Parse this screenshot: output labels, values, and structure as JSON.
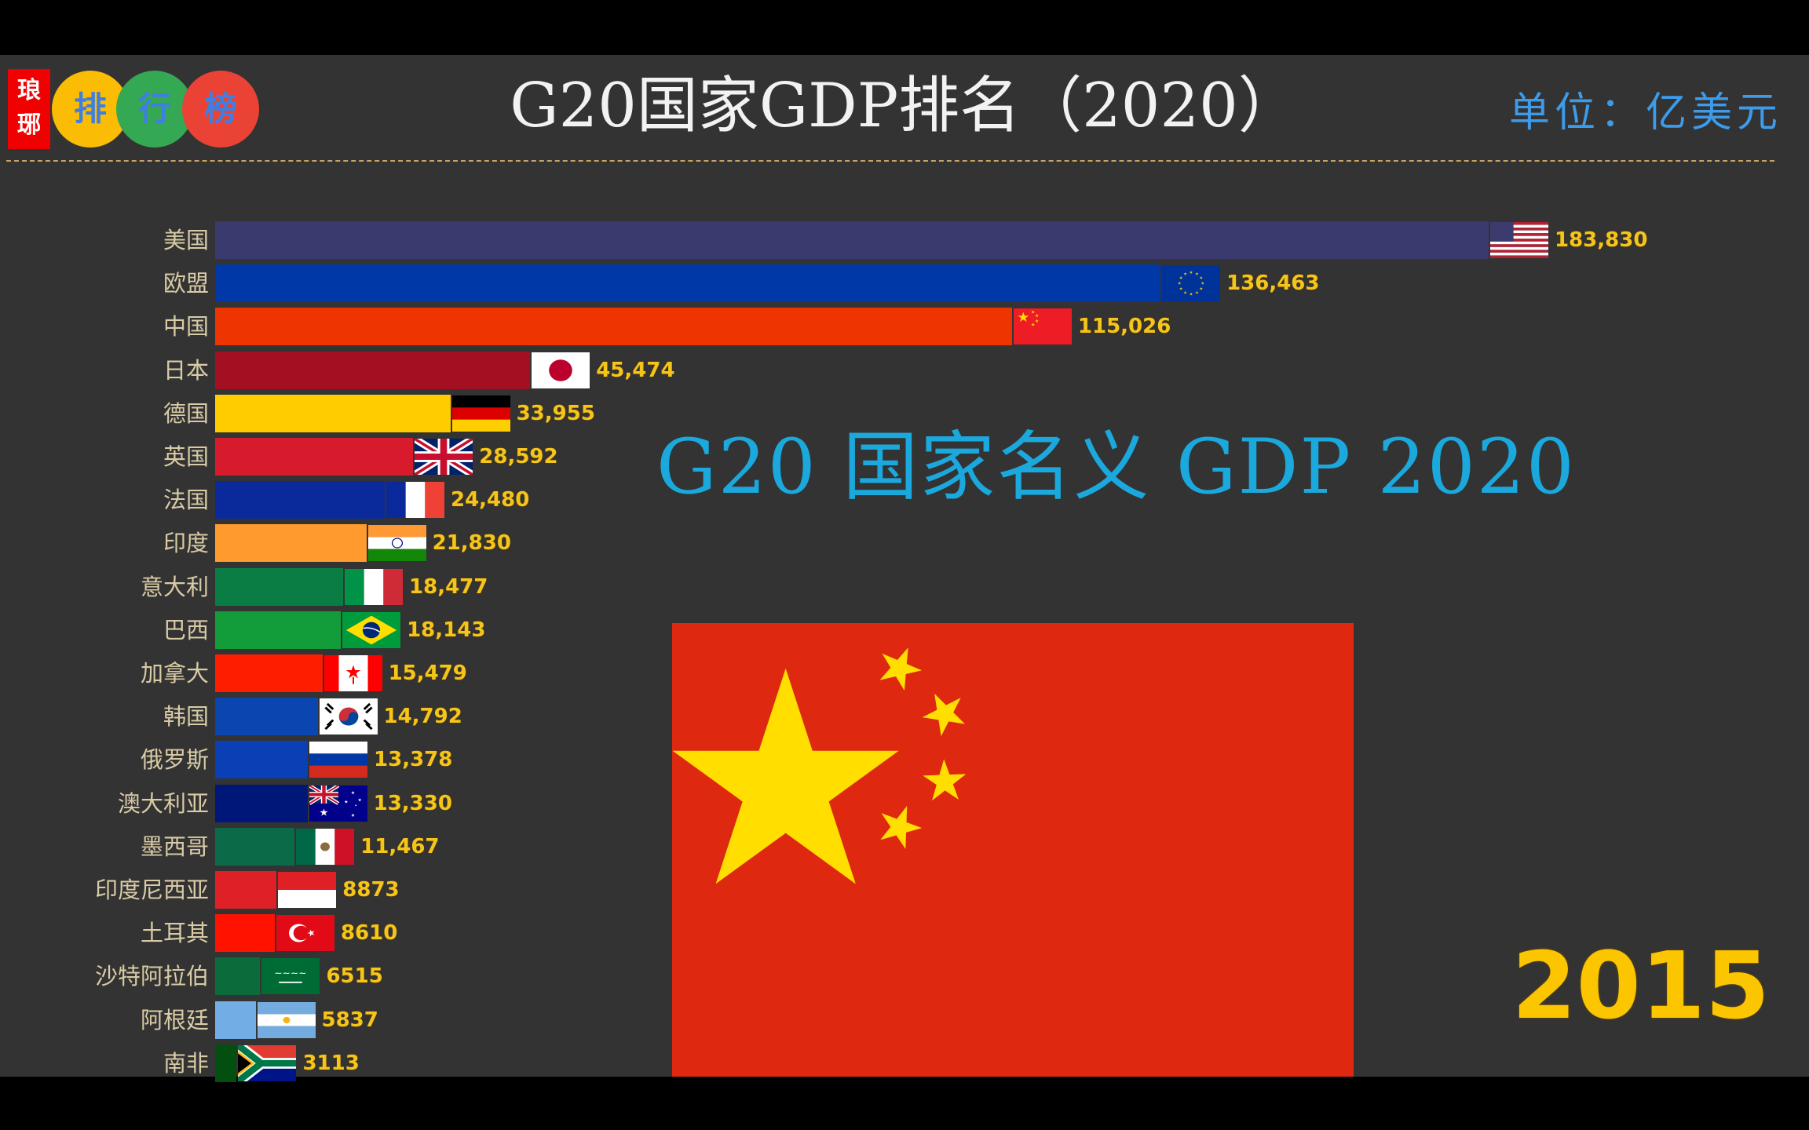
{
  "header": {
    "logo": {
      "seal_text": [
        "琅",
        "琊"
      ],
      "circles": [
        {
          "char": "排",
          "bg": "#fbbc05"
        },
        {
          "char": "行",
          "bg": "#34a853"
        },
        {
          "char": "榜",
          "bg": "#ea4335"
        }
      ]
    },
    "title": "G20国家GDP排名（2020）",
    "unit": "单位：亿美元"
  },
  "annotation": "G20 国家名义 GDP 2020",
  "current_year": "2015",
  "featured_flag": "china-flag",
  "colors": {
    "background": "#333333",
    "label": "#d9cba6",
    "value": "#f6c51b",
    "year": "#fbc500",
    "annotation": "#1aa8dd",
    "unit": "#3d9be9"
  },
  "chart_data": {
    "type": "bar",
    "orientation": "horizontal",
    "title": "G20国家GDP排名（2020）",
    "subtitle": "G20 国家名义 GDP 2020",
    "unit": "亿美元",
    "frame_year": "2015",
    "xlabel": "",
    "ylabel": "",
    "grid": false,
    "legend": "none",
    "categories": [
      "美国",
      "欧盟",
      "中国",
      "日本",
      "德国",
      "英国",
      "法国",
      "印度",
      "意大利",
      "巴西",
      "加拿大",
      "韩国",
      "俄罗斯",
      "澳大利亚",
      "墨西哥",
      "印度尼西亚",
      "土耳其",
      "沙特阿拉伯",
      "阿根廷",
      "南非"
    ],
    "values": [
      183830,
      136463,
      115026,
      45474,
      33955,
      28592,
      24480,
      21830,
      18477,
      18143,
      15479,
      14792,
      13378,
      13330,
      11467,
      8873,
      8610,
      6515,
      5837,
      3113
    ],
    "value_labels": [
      "183,830",
      "136,463",
      "115,026",
      "45,474",
      "33,955",
      "28,592",
      "24,480",
      "21,830",
      "18,477",
      "18,143",
      "15,479",
      "14,792",
      "13,378",
      "13,330",
      "11,467",
      "8873",
      "8610",
      "6515",
      "5837",
      "3113"
    ],
    "bar_colors": [
      "#3b3a6e",
      "#0038a8",
      "#ee3400",
      "#a50f22",
      "#ffcc00",
      "#d81b2c",
      "#0a2a9c",
      "#ff9a2e",
      "#0a7d44",
      "#139c3a",
      "#ff1d00",
      "#0a45b0",
      "#0a3fb6",
      "#00177a",
      "#0b6a47",
      "#e02027",
      "#ff1200",
      "#0c6b3a",
      "#73ade6",
      "#024f10"
    ],
    "flags": [
      "usa",
      "eu",
      "china",
      "japan",
      "germany",
      "uk",
      "france",
      "india",
      "italy",
      "brazil",
      "canada",
      "south-korea",
      "russia",
      "australia",
      "mexico",
      "indonesia",
      "turkey",
      "saudi-arabia",
      "argentina",
      "south-africa"
    ]
  }
}
